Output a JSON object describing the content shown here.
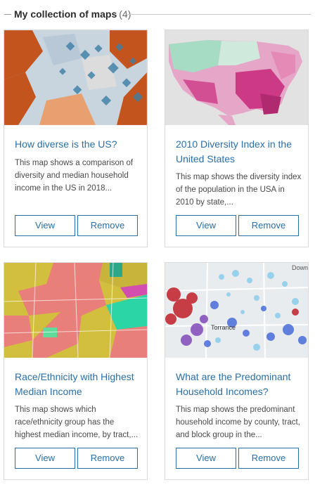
{
  "header": {
    "title": "My collection of maps",
    "count": "(4)"
  },
  "cards": [
    {
      "title": "How diverse is the US?",
      "description": "This map shows a comparison of diversity and median household income in the US in 2018...",
      "view_label": "View",
      "remove_label": "Remove"
    },
    {
      "title": "2010 Diversity Index in the United States",
      "description": "This map shows the diversity index of the population in the USA in 2010 by state,...",
      "view_label": "View",
      "remove_label": "Remove"
    },
    {
      "title": "Race/Ethnicity with Highest Median Income",
      "description": "This map shows which race/ethnicity group has the highest median income, by tract,...",
      "view_label": "View",
      "remove_label": "Remove"
    },
    {
      "title": "What are the Predominant Household Incomes?",
      "description": "This map shows the predominant household income by county, tract, and block group in the...",
      "view_label": "View",
      "remove_label": "Remove",
      "thumbnail_labels": [
        "Down",
        "Torrance"
      ]
    }
  ],
  "colors": {
    "link": "#2a6fa8",
    "border": "#dadada"
  }
}
